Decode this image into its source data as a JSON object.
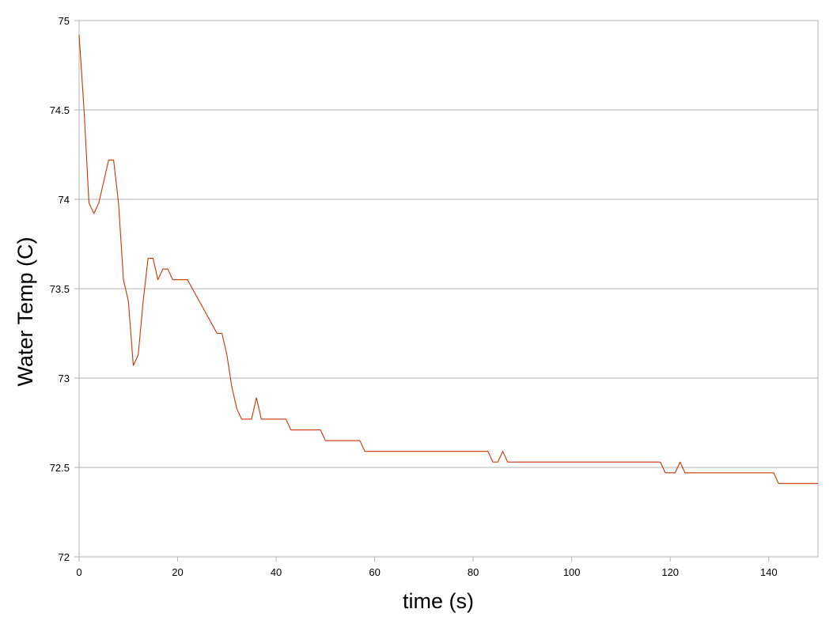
{
  "chart_data": {
    "type": "line",
    "title": "",
    "xlabel": "time (s)",
    "ylabel": "Water Temp (C)",
    "xlim": [
      0,
      150
    ],
    "ylim": [
      72,
      75
    ],
    "x_ticks": [
      0,
      20,
      40,
      60,
      80,
      100,
      120,
      140
    ],
    "y_ticks": [
      72,
      72.5,
      73,
      73.5,
      74,
      74.5,
      75
    ],
    "x_tick_labels": [
      "0",
      "20",
      "40",
      "60",
      "80",
      "100",
      "120",
      "140"
    ],
    "y_tick_labels": [
      "72",
      "72.5",
      "73",
      "73.5",
      "74",
      "74.5",
      "75"
    ],
    "grid": "horizontal",
    "legend": "none",
    "series": [
      {
        "color": "#cc3300",
        "points": [
          [
            0,
            74.92
          ],
          [
            1,
            74.5
          ],
          [
            2,
            73.98
          ],
          [
            3,
            73.92
          ],
          [
            4,
            73.98
          ],
          [
            5,
            74.1
          ],
          [
            6,
            74.22
          ],
          [
            7,
            74.22
          ],
          [
            8,
            73.98
          ],
          [
            9,
            73.55
          ],
          [
            10,
            73.43
          ],
          [
            11,
            73.07
          ],
          [
            12,
            73.13
          ],
          [
            13,
            73.43
          ],
          [
            14,
            73.67
          ],
          [
            15,
            73.67
          ],
          [
            16,
            73.55
          ],
          [
            17,
            73.61
          ],
          [
            18,
            73.61
          ],
          [
            19,
            73.55
          ],
          [
            22,
            73.55
          ],
          [
            23,
            73.5
          ],
          [
            24,
            73.45
          ],
          [
            25,
            73.4
          ],
          [
            26,
            73.35
          ],
          [
            27,
            73.3
          ],
          [
            28,
            73.25
          ],
          [
            29,
            73.25
          ],
          [
            30,
            73.13
          ],
          [
            31,
            72.95
          ],
          [
            32,
            72.83
          ],
          [
            33,
            72.77
          ],
          [
            35,
            72.77
          ],
          [
            36,
            72.89
          ],
          [
            37,
            72.77
          ],
          [
            42,
            72.77
          ],
          [
            43,
            72.71
          ],
          [
            49,
            72.71
          ],
          [
            50,
            72.65
          ],
          [
            57,
            72.65
          ],
          [
            58,
            72.59
          ],
          [
            83,
            72.59
          ],
          [
            84,
            72.53
          ],
          [
            85,
            72.53
          ],
          [
            86,
            72.59
          ],
          [
            87,
            72.53
          ],
          [
            118,
            72.53
          ],
          [
            119,
            72.47
          ],
          [
            121,
            72.47
          ],
          [
            122,
            72.53
          ],
          [
            123,
            72.47
          ],
          [
            141,
            72.47
          ],
          [
            142,
            72.41
          ],
          [
            150,
            72.41
          ]
        ]
      }
    ]
  }
}
